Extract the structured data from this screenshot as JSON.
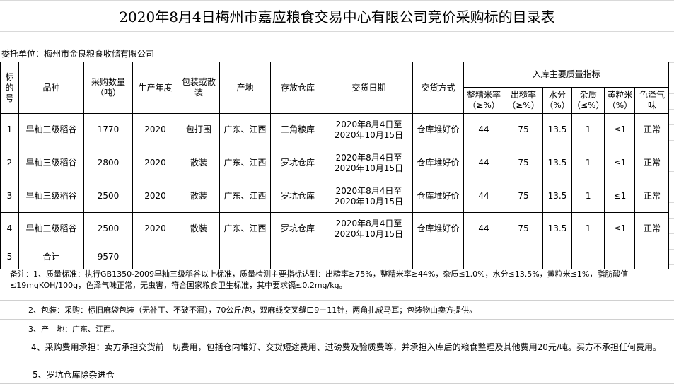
{
  "title": "2020年8月4日梅州市嘉应粮食交易中心有限公司竞价采购标的目录表",
  "client": "委托单位：梅州市金良粮食收储有限公司",
  "headers": {
    "no": "标的号",
    "variety": "品种",
    "qty": "采购数量（吨）",
    "year": "生产年度",
    "pack": "包装或散装",
    "origin": "产地",
    "warehouse": "存放仓库",
    "date": "交货日期",
    "method": "交货方式",
    "quality": "入库主要质量指标",
    "q": [
      "整精米率（≥%）",
      "出糙率（≥%）",
      "水分（%）",
      "杂质（≤%）",
      "黄粒米（%）",
      "色泽气味"
    ]
  },
  "rows": [
    {
      "no": "1",
      "variety": "早籼三级稻谷",
      "qty": "1770",
      "year": "2020",
      "pack": "包打围",
      "origin": "广东、江西",
      "warehouse": "三角粮库",
      "date": "2020年8月4日至2020年10月15日",
      "method": "仓库堆好价",
      "q": [
        "44",
        "75",
        "13.5",
        "1",
        "≤1",
        "正常"
      ]
    },
    {
      "no": "2",
      "variety": "早籼三级稻谷",
      "qty": "2800",
      "year": "2020",
      "pack": "散装",
      "origin": "广东、江西",
      "warehouse": "罗坑仓库",
      "date": "2020年8月4日至2020年10月15日",
      "method": "仓库堆好价",
      "q": [
        "44",
        "75",
        "13.5",
        "1",
        "≤1",
        "正常"
      ]
    },
    {
      "no": "3",
      "variety": "早籼三级稻谷",
      "qty": "2500",
      "year": "2020",
      "pack": "散装",
      "origin": "广东、江西",
      "warehouse": "罗坑仓库",
      "date": "2020年8月4日至2020年10月15日",
      "method": "仓库堆好价",
      "q": [
        "44",
        "75",
        "13.5",
        "1",
        "≤1",
        "正常"
      ]
    },
    {
      "no": "4",
      "variety": "早籼三级稻谷",
      "qty": "2500",
      "year": "2020",
      "pack": "散装",
      "origin": "广东、江西",
      "warehouse": "罗坑仓库",
      "date": "2020年8月4日至2020年10月15日",
      "method": "仓库堆好价",
      "q": [
        "44",
        "75",
        "13.5",
        "1",
        "≤1",
        "正常"
      ]
    }
  ],
  "total": {
    "no": "5",
    "label": "合计",
    "qty": "9570"
  },
  "notes": [
    "备注：1、质量标准：执行GB1350-2009早籼三级稻谷以上标准，质量检测主要指标达到：出糙率≥75%，整精米率≥44%，杂质≤1.0%，水分≤13.5%，黄粒米≤1%，脂肪酸值≤19mgKOH/100g，色泽气味正常，无虫害，符合国家粮食卫生标准，其中要求镉≤0.2mg/kg。",
    "2、包装：采购：标旧麻袋包装（无补丁、不破不漏），70公斤/包，双麻线交叉缝口9－11针，两角扎成马耳；包装物由卖方提供。",
    "3、产　地：广东、江西。",
    "4、采购费用承担：卖方承担交货前一切费用，包括仓内堆好、交货短途费用、过磅费及验质费等，并承担入库后的粮食整理及其他费用20元/吨。买方不承担任何费用。",
    "5、罗坑仓库除杂进仓"
  ]
}
